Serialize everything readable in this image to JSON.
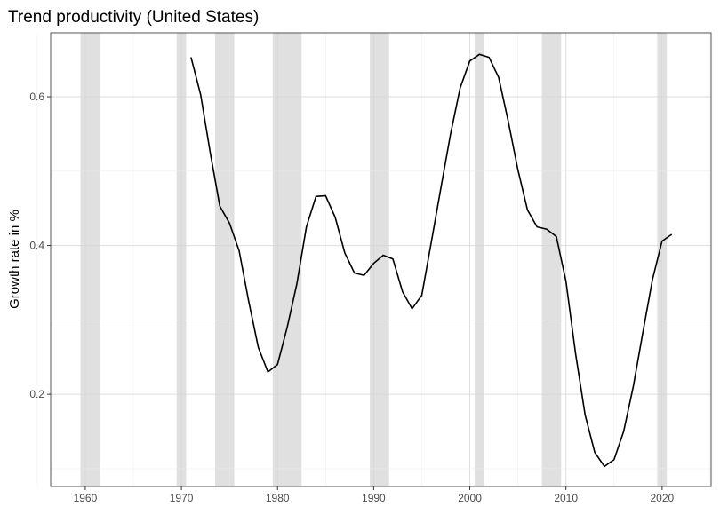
{
  "chart_data": {
    "type": "line",
    "title": "Trend productivity (United States)",
    "xlabel": "",
    "ylabel": "Growth rate in %",
    "xlim": [
      1956.4,
      2025.1
    ],
    "ylim": [
      0.076,
      0.686
    ],
    "x_ticks": [
      1960,
      1970,
      1980,
      1990,
      2000,
      2010,
      2020
    ],
    "x_tick_labels": [
      "1960",
      "1970",
      "1980",
      "1990",
      "2000",
      "2010",
      "2020"
    ],
    "y_ticks": [
      0.2,
      0.4,
      0.6
    ],
    "y_tick_labels": [
      "0.2",
      "0.4",
      "0.6"
    ],
    "grid": true,
    "line_color": "#000000",
    "band_color": "#e0e0e0",
    "shaded_periods": [
      [
        1959.5,
        1961.5
      ],
      [
        1969.5,
        1970.5
      ],
      [
        1973.5,
        1975.5
      ],
      [
        1979.5,
        1982.5
      ],
      [
        1989.6,
        1991.6
      ],
      [
        2000.5,
        2001.5
      ],
      [
        2007.5,
        2009.5
      ],
      [
        2019.5,
        2020.5
      ]
    ],
    "x": [
      1971,
      1972,
      1973,
      1974,
      1975,
      1976,
      1977,
      1978,
      1979,
      1980,
      1981,
      1982,
      1983,
      1984,
      1985,
      1986,
      1987,
      1988,
      1989,
      1990,
      1991,
      1992,
      1993,
      1994,
      1995,
      1996,
      1997,
      1998,
      1999,
      2000,
      2001,
      2002,
      2003,
      2004,
      2005,
      2006,
      2007,
      2008,
      2009,
      2010,
      2011,
      2012,
      2013,
      2014,
      2015,
      2016,
      2017,
      2018,
      2019,
      2020,
      2021
    ],
    "y": [
      0.653,
      0.603,
      0.525,
      0.453,
      0.43,
      0.393,
      0.325,
      0.263,
      0.23,
      0.24,
      0.29,
      0.348,
      0.425,
      0.466,
      0.467,
      0.438,
      0.39,
      0.363,
      0.36,
      0.376,
      0.387,
      0.382,
      0.338,
      0.315,
      0.333,
      0.405,
      0.478,
      0.55,
      0.612,
      0.648,
      0.657,
      0.653,
      0.626,
      0.567,
      0.502,
      0.448,
      0.425,
      0.422,
      0.412,
      0.352,
      0.255,
      0.172,
      0.122,
      0.103,
      0.112,
      0.15,
      0.21,
      0.283,
      0.354,
      0.406,
      0.415
    ]
  }
}
